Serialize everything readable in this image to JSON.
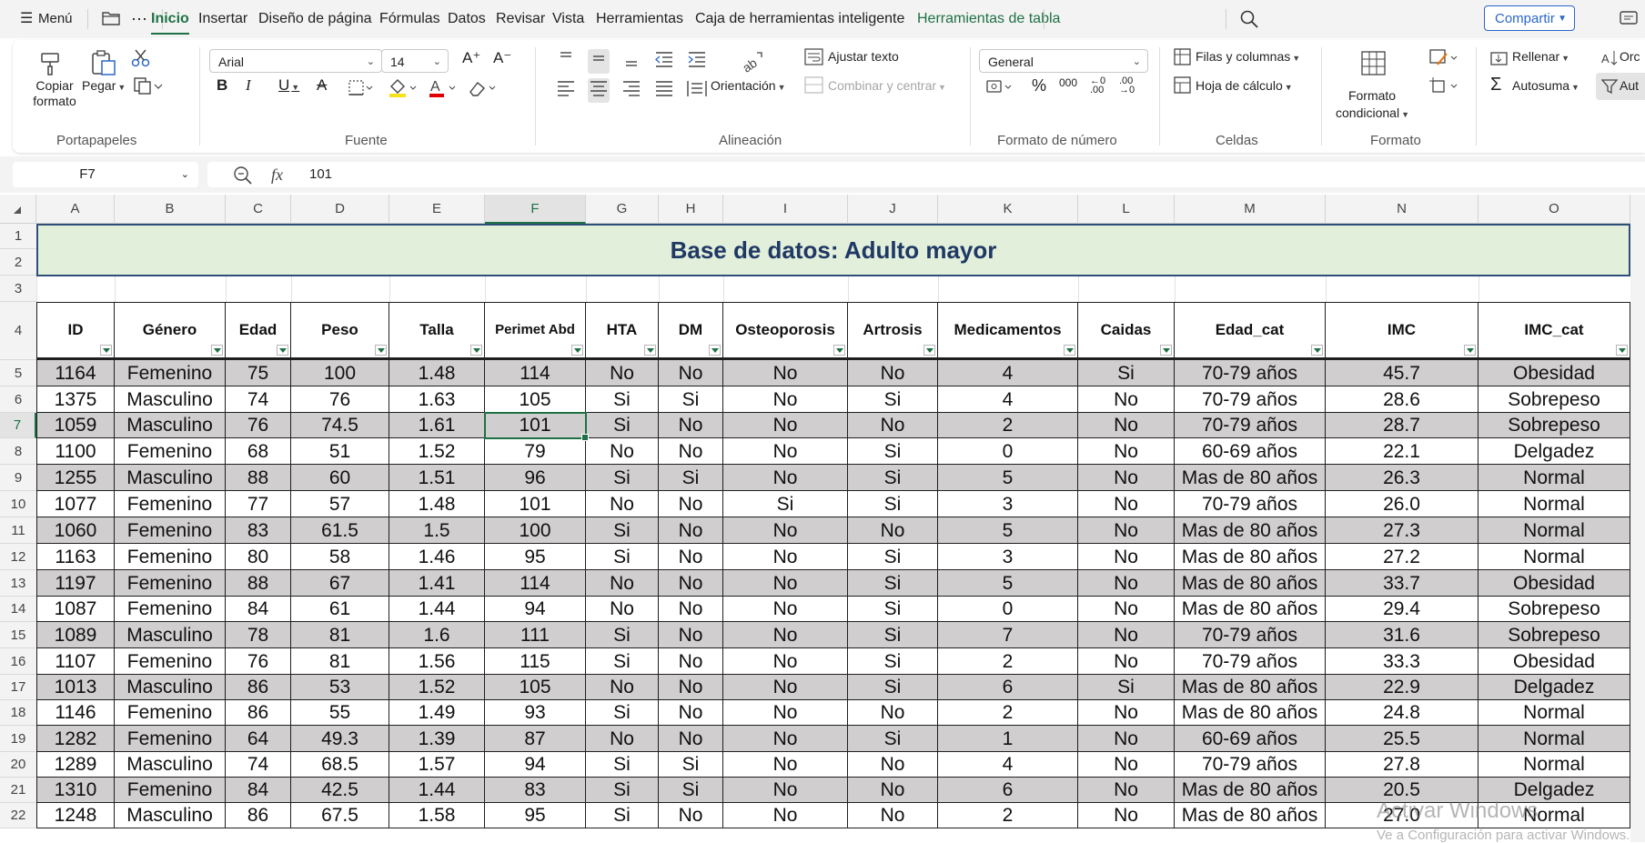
{
  "menubar": {
    "menu_label": "Menú",
    "tabs": [
      {
        "label": "Inicio",
        "active": true
      },
      {
        "label": "Insertar"
      },
      {
        "label": "Diseño de página"
      },
      {
        "label": "Fórmulas"
      },
      {
        "label": "Datos"
      },
      {
        "label": "Revisar"
      },
      {
        "label": "Vista"
      },
      {
        "label": "Herramientas"
      },
      {
        "label": "Caja de herramientas inteligente"
      },
      {
        "label": "Herramientas de tabla",
        "contextual": true
      }
    ],
    "share_label": "Compartir"
  },
  "ribbon": {
    "clipboard": {
      "copy_format": "Copiar formato",
      "paste": "Pegar",
      "group": "Portapapeles"
    },
    "font": {
      "name": "Arial",
      "size": "14",
      "group": "Fuente"
    },
    "alignment": {
      "wrap": "Ajustar texto",
      "merge": "Combinar y centrar",
      "orientation": "Orientación",
      "group": "Alineación"
    },
    "number": {
      "format": "General",
      "group": "Formato de número"
    },
    "cells": {
      "rows_cols": "Filas y columnas",
      "sheet": "Hoja de cálculo",
      "group": "Celdas"
    },
    "format": {
      "conditional": "Formato condicional",
      "group": "Formato"
    },
    "editing": {
      "fill": "Rellenar",
      "autosum": "Autosuma",
      "sort": "Orc",
      "filter": "Aut"
    }
  },
  "formula_bar": {
    "cell_ref": "F7",
    "fx": "fx",
    "value": "101"
  },
  "sheet": {
    "title": "Base de datos: Adulto mayor",
    "column_letters": [
      "A",
      "B",
      "C",
      "D",
      "E",
      "F",
      "G",
      "H",
      "I",
      "J",
      "K",
      "L",
      "M",
      "N",
      "O"
    ],
    "selected_column": "F",
    "selected_row": 7,
    "row_numbers": [
      1,
      2,
      3,
      4,
      5,
      6,
      7,
      8,
      9,
      10,
      11,
      12,
      13,
      14,
      15,
      16,
      17,
      18,
      19,
      20,
      21,
      22
    ],
    "headers": [
      "ID",
      "Género",
      "Edad",
      "Peso",
      "Talla",
      "Perimet Abd",
      "HTA",
      "DM",
      "Osteoporosis",
      "Artrosis",
      "Medicamentos",
      "Caidas",
      "Edad_cat",
      "IMC",
      "IMC_cat"
    ],
    "rows": [
      [
        "1164",
        "Femenino",
        "75",
        "100",
        "1.48",
        "114",
        "No",
        "No",
        "No",
        "No",
        "4",
        "Si",
        "70-79 años",
        "45.7",
        "Obesidad"
      ],
      [
        "1375",
        "Masculino",
        "74",
        "76",
        "1.63",
        "105",
        "Si",
        "Si",
        "No",
        "Si",
        "4",
        "No",
        "70-79 años",
        "28.6",
        "Sobrepeso"
      ],
      [
        "1059",
        "Masculino",
        "76",
        "74.5",
        "1.61",
        "101",
        "Si",
        "No",
        "No",
        "No",
        "2",
        "No",
        "70-79 años",
        "28.7",
        "Sobrepeso"
      ],
      [
        "1100",
        "Femenino",
        "68",
        "51",
        "1.52",
        "79",
        "No",
        "No",
        "No",
        "Si",
        "0",
        "No",
        "60-69 años",
        "22.1",
        "Delgadez"
      ],
      [
        "1255",
        "Masculino",
        "88",
        "60",
        "1.51",
        "96",
        "Si",
        "Si",
        "No",
        "Si",
        "5",
        "No",
        "Mas de 80 años",
        "26.3",
        "Normal"
      ],
      [
        "1077",
        "Femenino",
        "77",
        "57",
        "1.48",
        "101",
        "No",
        "No",
        "Si",
        "Si",
        "3",
        "No",
        "70-79 años",
        "26.0",
        "Normal"
      ],
      [
        "1060",
        "Femenino",
        "83",
        "61.5",
        "1.5",
        "100",
        "Si",
        "No",
        "No",
        "No",
        "5",
        "No",
        "Mas de 80 años",
        "27.3",
        "Normal"
      ],
      [
        "1163",
        "Femenino",
        "80",
        "58",
        "1.46",
        "95",
        "Si",
        "No",
        "No",
        "Si",
        "3",
        "No",
        "Mas de 80 años",
        "27.2",
        "Normal"
      ],
      [
        "1197",
        "Femenino",
        "88",
        "67",
        "1.41",
        "114",
        "No",
        "No",
        "No",
        "Si",
        "5",
        "No",
        "Mas de 80 años",
        "33.7",
        "Obesidad"
      ],
      [
        "1087",
        "Femenino",
        "84",
        "61",
        "1.44",
        "94",
        "No",
        "No",
        "No",
        "Si",
        "0",
        "No",
        "Mas de 80 años",
        "29.4",
        "Sobrepeso"
      ],
      [
        "1089",
        "Masculino",
        "78",
        "81",
        "1.6",
        "111",
        "Si",
        "No",
        "No",
        "Si",
        "7",
        "No",
        "70-79 años",
        "31.6",
        "Sobrepeso"
      ],
      [
        "1107",
        "Femenino",
        "76",
        "81",
        "1.56",
        "115",
        "Si",
        "No",
        "No",
        "Si",
        "2",
        "No",
        "70-79 años",
        "33.3",
        "Obesidad"
      ],
      [
        "1013",
        "Masculino",
        "86",
        "53",
        "1.52",
        "105",
        "No",
        "No",
        "No",
        "Si",
        "6",
        "Si",
        "Mas de 80 años",
        "22.9",
        "Delgadez"
      ],
      [
        "1146",
        "Femenino",
        "86",
        "55",
        "1.49",
        "93",
        "Si",
        "No",
        "No",
        "No",
        "2",
        "No",
        "Mas de 80 años",
        "24.8",
        "Normal"
      ],
      [
        "1282",
        "Femenino",
        "64",
        "49.3",
        "1.39",
        "87",
        "No",
        "No",
        "No",
        "Si",
        "1",
        "No",
        "60-69 años",
        "25.5",
        "Normal"
      ],
      [
        "1289",
        "Masculino",
        "74",
        "68.5",
        "1.57",
        "94",
        "Si",
        "Si",
        "No",
        "No",
        "4",
        "No",
        "70-79 años",
        "27.8",
        "Normal"
      ],
      [
        "1310",
        "Femenino",
        "84",
        "42.5",
        "1.44",
        "83",
        "Si",
        "Si",
        "No",
        "No",
        "6",
        "No",
        "Mas de 80 años",
        "20.5",
        "Delgadez"
      ],
      [
        "1248",
        "Masculino",
        "86",
        "67.5",
        "1.58",
        "95",
        "Si",
        "No",
        "No",
        "No",
        "2",
        "No",
        "Mas de 80 años",
        "27.0",
        "Normal"
      ]
    ],
    "banded_color": "#d0cece",
    "accent": "#1e7145"
  },
  "watermark": {
    "line1": "Activar Windows",
    "line2": "Ve a Configuración para activar Windows."
  }
}
